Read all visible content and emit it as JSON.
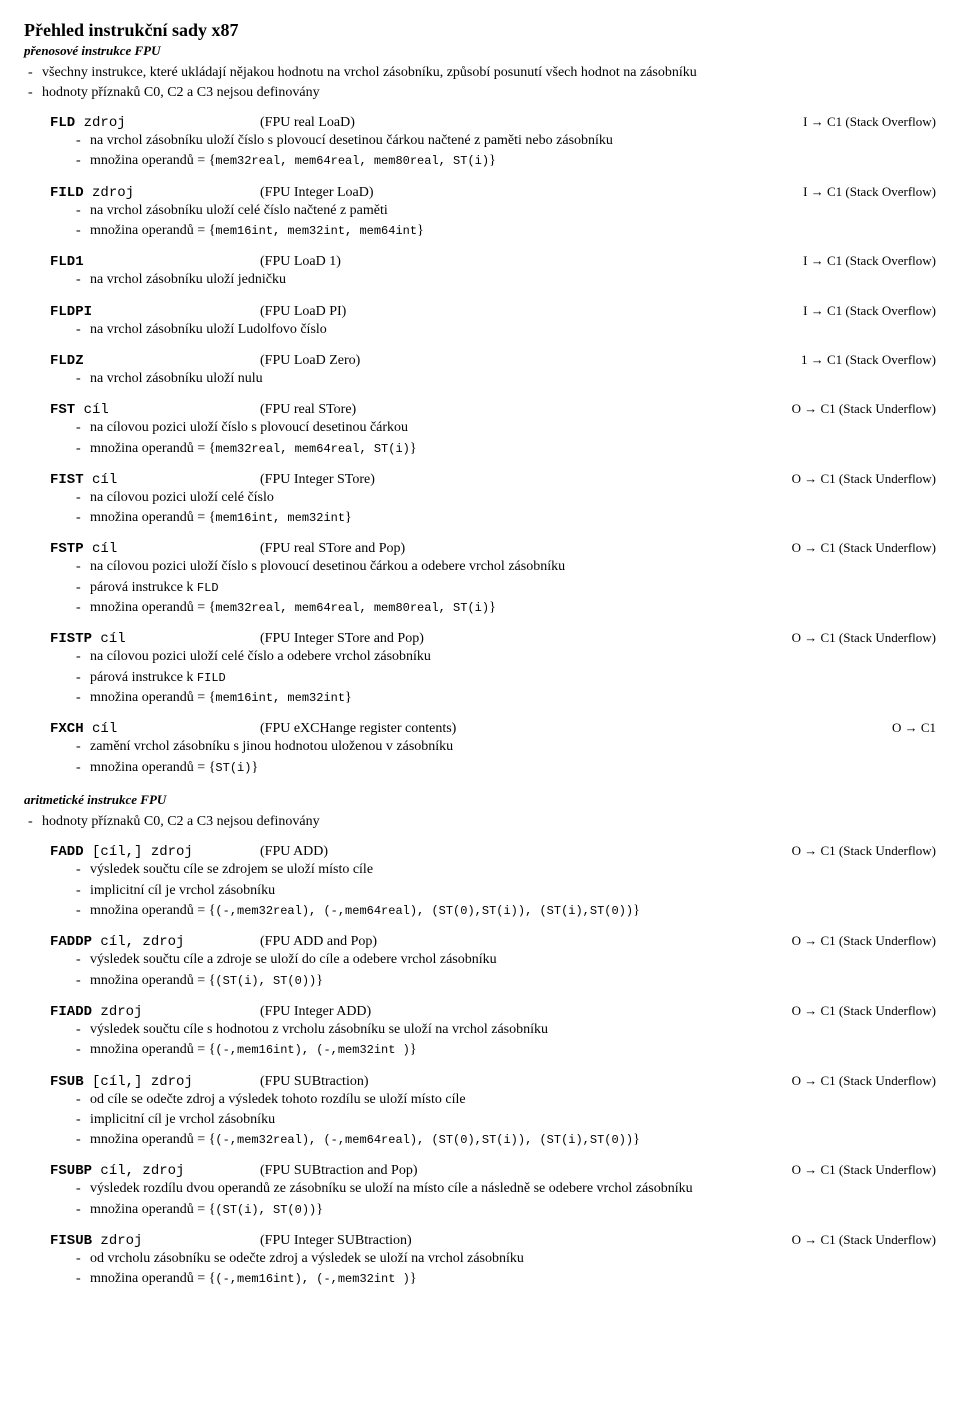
{
  "title": "Přehled instrukční sady x87",
  "section1": {
    "label": "přenosové instrukce FPU",
    "notes": [
      "všechny instrukce, které ukládají nějakou hodnotu na vrchol zásobníku, způsobí posunutí všech hodnot na zásobníku",
      "hodnoty příznaků C0, C2 a C3 nejsou definovány"
    ],
    "instructions": [
      {
        "mnemonic": "FLD",
        "operand": "zdroj",
        "desc": "(FPU real LoaD)",
        "flags": "I → C1 (Stack Overflow)",
        "bullets": [
          {
            "t": "na vrchol zásobníku uloží číslo s plovoucí desetinou čárkou načtené z paměti nebo zásobníku"
          },
          {
            "pre": "množina operandů = {",
            "mono": "mem32real, mem64real, mem80real, ST(i)",
            "post": "}"
          }
        ]
      },
      {
        "mnemonic": "FILD",
        "operand": "zdroj",
        "desc": "(FPU Integer LoaD)",
        "flags": "I → C1 (Stack Overflow)",
        "bullets": [
          {
            "t": "na vrchol zásobníku uloží celé číslo načtené z paměti"
          },
          {
            "pre": "množina operandů = {",
            "mono": "mem16int, mem32int, mem64int",
            "post": "}"
          }
        ]
      },
      {
        "mnemonic": "FLD1",
        "operand": "",
        "desc": "(FPU LoaD 1)",
        "flags": "I → C1 (Stack Overflow)",
        "bullets": [
          {
            "t": "na vrchol zásobníku uloží jedničku"
          }
        ]
      },
      {
        "mnemonic": "FLDPI",
        "operand": "",
        "desc": "(FPU LoaD PI)",
        "flags": "I → C1 (Stack Overflow)",
        "bullets": [
          {
            "t": "na vrchol zásobníku uloží Ludolfovo číslo"
          }
        ]
      },
      {
        "mnemonic": "FLDZ",
        "operand": "",
        "desc": "(FPU LoaD Zero)",
        "flags": "1 → C1 (Stack Overflow)",
        "bullets": [
          {
            "t": "na vrchol zásobníku uloží nulu"
          }
        ]
      },
      {
        "mnemonic": "FST",
        "operand": "cíl",
        "desc": "(FPU real STore)",
        "flags": "O → C1 (Stack Underflow)",
        "bullets": [
          {
            "t": "na cílovou pozici uloží číslo s plovoucí desetinou čárkou"
          },
          {
            "pre": "množina operandů = {",
            "mono": "mem32real, mem64real, ST(i)",
            "post": "}"
          }
        ]
      },
      {
        "mnemonic": "FIST",
        "operand": "cíl",
        "desc": "(FPU Integer STore)",
        "flags": "O → C1 (Stack Underflow)",
        "bullets": [
          {
            "t": "na cílovou pozici uloží celé číslo"
          },
          {
            "pre": "množina operandů = {",
            "mono": "mem16int, mem32int",
            "post": "}"
          }
        ]
      },
      {
        "mnemonic": "FSTP",
        "operand": "cíl",
        "desc": "(FPU real STore and Pop)",
        "flags": "O → C1 (Stack Underflow)",
        "bullets": [
          {
            "t": "na cílovou pozici uloží číslo s plovoucí desetinou čárkou a odebere vrchol zásobníku"
          },
          {
            "pre": "párová instrukce k ",
            "mono": "FLD",
            "post": ""
          },
          {
            "pre": "množina operandů = {",
            "mono": "mem32real, mem64real, mem80real, ST(i)",
            "post": "}"
          }
        ]
      },
      {
        "mnemonic": "FISTP",
        "operand": "cíl",
        "desc": "(FPU Integer STore and Pop)",
        "flags": "O → C1 (Stack Underflow)",
        "bullets": [
          {
            "t": "na cílovou pozici uloží celé číslo a odebere vrchol zásobníku"
          },
          {
            "pre": "párová instrukce k ",
            "mono": "FILD",
            "post": ""
          },
          {
            "pre": "množina operandů = {",
            "mono": "mem16int, mem32int",
            "post": "}"
          }
        ]
      },
      {
        "mnemonic": "FXCH",
        "operand": "cíl",
        "desc": "(FPU eXCHange register contents)",
        "flags": "O → C1",
        "bullets": [
          {
            "t": "zamění vrchol zásobníku s jinou hodnotou uloženou v zásobníku"
          },
          {
            "pre": "množina operandů = {",
            "mono": "ST(i)",
            "post": "}"
          }
        ]
      }
    ]
  },
  "section2": {
    "label": "aritmetické instrukce FPU",
    "notes": [
      "hodnoty příznaků C0, C2 a C3 nejsou definovány"
    ],
    "instructions": [
      {
        "mnemonic": "FADD",
        "operand": "[cíl,] zdroj",
        "desc": "(FPU ADD)",
        "flags": "O → C1 (Stack Underflow)",
        "bullets": [
          {
            "t": "výsledek součtu cíle se zdrojem se uloží místo cíle"
          },
          {
            "t": "implicitní cíl je vrchol zásobníku"
          },
          {
            "pre": "množina operandů = {",
            "mono": "(-,mem32real), (-,mem64real), (ST(0),ST(i)), (ST(i),ST(0))",
            "post": "}"
          }
        ]
      },
      {
        "mnemonic": "FADDP",
        "operand": "cíl, zdroj",
        "desc": "(FPU ADD and Pop)",
        "flags": "O → C1 (Stack Underflow)",
        "bullets": [
          {
            "t": "výsledek součtu cíle a zdroje se uloží do cíle a odebere vrchol zásobníku"
          },
          {
            "pre": "množina operandů = {",
            "mono": "(ST(i), ST(0))",
            "post": "}"
          }
        ]
      },
      {
        "mnemonic": "FIADD",
        "operand": "zdroj",
        "desc": "(FPU Integer ADD)",
        "flags": "O → C1 (Stack Underflow)",
        "bullets": [
          {
            "t": "výsledek součtu cíle s hodnotou z vrcholu zásobníku se uloží na vrchol zásobníku"
          },
          {
            "pre": "množina operandů = {",
            "mono": "(-,mem16int), (-,mem32int )",
            "post": "}"
          }
        ]
      },
      {
        "mnemonic": "FSUB",
        "operand": "[cíl,] zdroj",
        "desc": "(FPU SUBtraction)",
        "flags": "O → C1 (Stack Underflow)",
        "bullets": [
          {
            "t": "od cíle se odečte zdroj a výsledek tohoto rozdílu se uloží místo cíle"
          },
          {
            "t": "implicitní cíl je vrchol zásobníku"
          },
          {
            "pre": "množina operandů = {",
            "mono": "(-,mem32real), (-,mem64real), (ST(0),ST(i)), (ST(i),ST(0))",
            "post": "}"
          }
        ]
      },
      {
        "mnemonic": "FSUBP",
        "operand": "cíl, zdroj",
        "desc": "(FPU SUBtraction and Pop)",
        "flags": "O → C1 (Stack Underflow)",
        "bullets": [
          {
            "t": "výsledek rozdílu dvou operandů ze zásobníku se uloží na místo cíle a následně se odebere vrchol zásobníku"
          },
          {
            "pre": "množina operandů = {",
            "mono": "(ST(i), ST(0))",
            "post": "}"
          }
        ]
      },
      {
        "mnemonic": "FISUB",
        "operand": "zdroj",
        "desc": "(FPU Integer SUBtraction)",
        "flags": "O → C1 (Stack Underflow)",
        "bullets": [
          {
            "t": "od vrcholu zásobníku se odečte zdroj a výsledek se uloží na vrchol zásobníku"
          },
          {
            "pre": "množina operandů = {",
            "mono": "(-,mem16int), (-,mem32int )",
            "post": "}"
          }
        ]
      }
    ]
  }
}
